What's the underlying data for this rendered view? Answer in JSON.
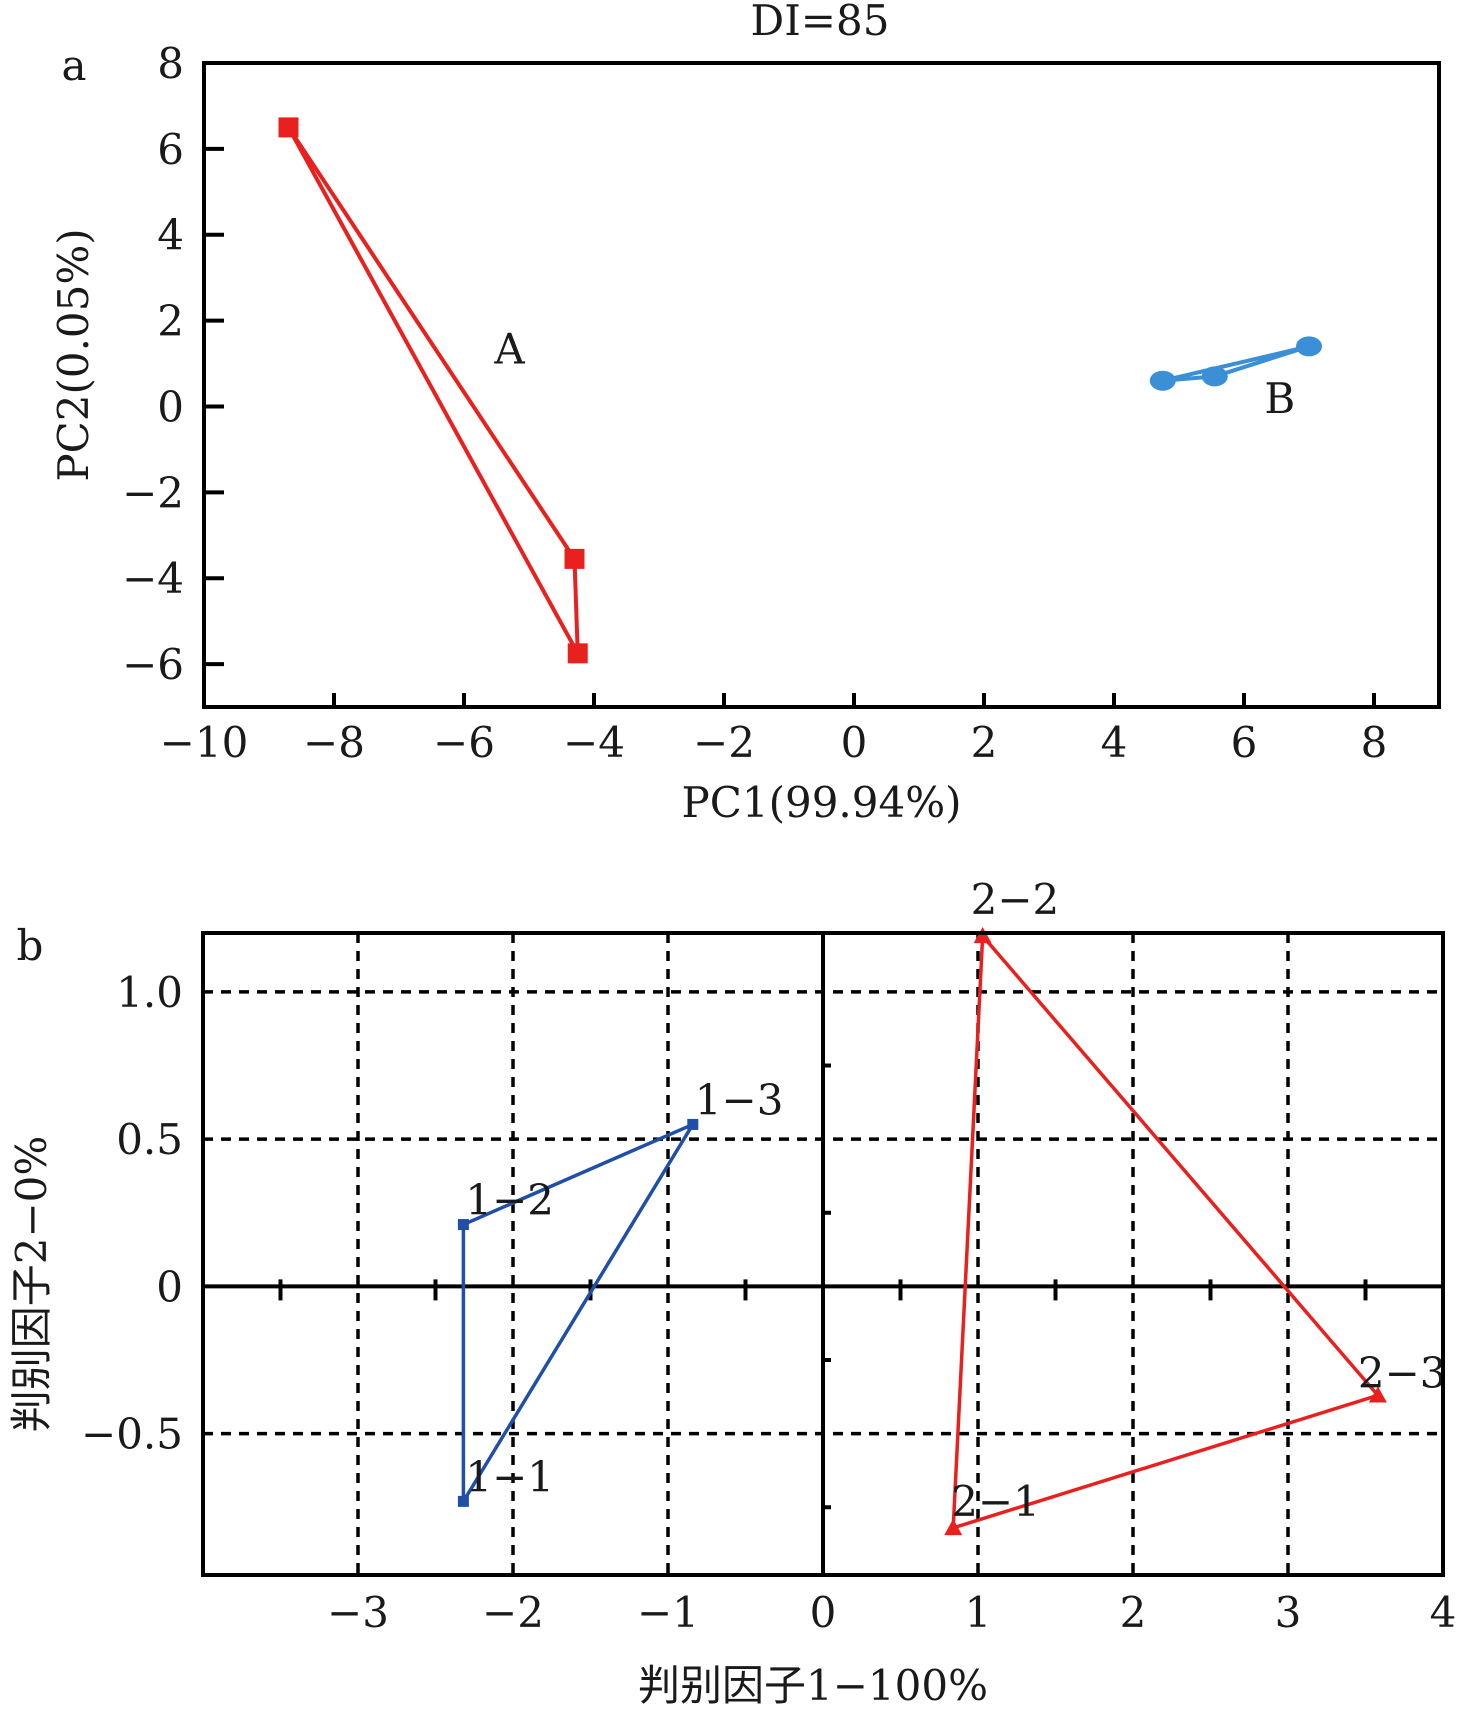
{
  "chart_data": [
    {
      "panel": "a",
      "type": "scatter",
      "title": "DI=85",
      "xlabel": "PC1(99.94%)",
      "ylabel": "PC2(0.05%)",
      "xlim": [
        -10,
        9
      ],
      "ylim": [
        -7,
        8
      ],
      "xticks": [
        -10,
        -8,
        -6,
        -4,
        -2,
        0,
        2,
        4,
        6,
        8
      ],
      "yticks": [
        -6,
        -4,
        -2,
        0,
        2,
        4,
        6,
        8
      ],
      "xtick_labels": [
        "−10",
        "−8",
        "−6",
        "−4",
        "−2",
        "0",
        "2",
        "4",
        "6",
        "8"
      ],
      "ytick_labels": [
        "−6",
        "−4",
        "−2",
        "0",
        "2",
        "4",
        "6",
        "8"
      ],
      "grid": false,
      "series": [
        {
          "name": "A",
          "marker": "square",
          "color": "#e8211f",
          "closed": true,
          "x": [
            -8.7,
            -4.3,
            -4.25
          ],
          "y": [
            6.5,
            -3.55,
            -5.75
          ],
          "label_at": [
            -5.3,
            1.0
          ]
        },
        {
          "name": "B",
          "marker": "circle",
          "color": "#3a8fd6",
          "closed": true,
          "x": [
            4.75,
            5.55,
            7.0
          ],
          "y": [
            0.6,
            0.7,
            1.4
          ],
          "label_at": [
            6.55,
            -0.15
          ]
        }
      ]
    },
    {
      "panel": "b",
      "type": "scatter",
      "title": "",
      "xlabel": "判别因子1−100%",
      "ylabel": "判别因子2−0%",
      "xlim": [
        -4,
        4
      ],
      "ylim": [
        -0.98,
        1.2
      ],
      "xticks": [
        -3,
        -2,
        -1,
        0,
        1,
        2,
        3,
        4
      ],
      "yticks": [
        -0.5,
        0,
        0.5,
        1.0
      ],
      "xtick_labels": [
        "−3",
        "−2",
        "−1",
        "0",
        "1",
        "2",
        "3",
        "4"
      ],
      "ytick_labels": [
        "−0.5",
        "0",
        "0.5",
        "1.0"
      ],
      "grid": true,
      "grid_style": "dashed",
      "series": [
        {
          "name": "1",
          "marker": "square",
          "color": "#1f4fa8",
          "closed": true,
          "points": [
            {
              "label": "1−1",
              "x": -2.32,
              "y": -0.73
            },
            {
              "label": "1−2",
              "x": -2.32,
              "y": 0.21
            },
            {
              "label": "1−3",
              "x": -0.84,
              "y": 0.55
            }
          ]
        },
        {
          "name": "2",
          "marker": "triangle",
          "color": "#e8211f",
          "closed": true,
          "points": [
            {
              "label": "2−1",
              "x": 0.84,
              "y": -0.82
            },
            {
              "label": "2−2",
              "x": 1.03,
              "y": 1.19
            },
            {
              "label": "2−3",
              "x": 3.58,
              "y": -0.37
            }
          ]
        }
      ]
    }
  ]
}
